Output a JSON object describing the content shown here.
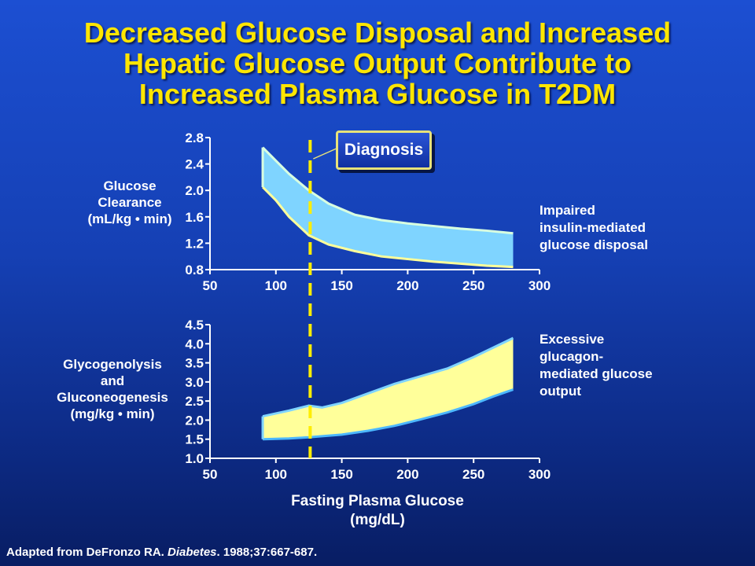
{
  "title_lines": [
    "Decreased Glucose Disposal and Increased",
    "Hepatic Glucose Output Contribute to",
    "Increased Plasma Glucose in T2DM"
  ],
  "xaxis_label_lines": [
    "Fasting Plasma Glucose",
    "(mg/dL)"
  ],
  "diagnosis_label": "Diagnosis",
  "citation": {
    "prefix": "Adapted from DeFronzo RA. ",
    "journal": "Diabetes",
    "suffix": ". 1988;37:667-687."
  },
  "colors": {
    "title": "#ffe600",
    "clearance_band": "#7fd4ff",
    "output_band": "#ffff9a",
    "diagnosis_line": "#ffee00",
    "axis": "#ffffff"
  },
  "chart_data": [
    {
      "type": "area",
      "ylabel_lines": [
        "Glucose",
        "Clearance",
        "(mL/kg • min)"
      ],
      "annotation_lines": [
        "Impaired",
        "insulin-mediated",
        "glucose disposal"
      ],
      "xlim": [
        50,
        300
      ],
      "ylim": [
        0.8,
        2.8
      ],
      "xticks": [
        "50",
        "100",
        "150",
        "200",
        "250",
        "300"
      ],
      "yticks": [
        "0.8",
        "1.2",
        "1.6",
        "2.0",
        "2.4",
        "2.8"
      ],
      "series": [
        {
          "x": [
            90,
            100,
            110,
            125,
            140,
            160,
            180,
            200,
            220,
            240,
            260,
            280
          ],
          "upper": [
            2.65,
            2.45,
            2.25,
            2.0,
            1.8,
            1.63,
            1.55,
            1.5,
            1.46,
            1.42,
            1.39,
            1.35
          ],
          "lower": [
            2.05,
            1.85,
            1.6,
            1.32,
            1.18,
            1.08,
            1.0,
            0.96,
            0.92,
            0.89,
            0.86,
            0.84
          ]
        }
      ],
      "diagnosis_x": 126
    },
    {
      "type": "area",
      "ylabel_lines": [
        "Glycogenolysis",
        "and",
        "Gluconeogenesis",
        "(mg/kg • min)"
      ],
      "annotation_lines": [
        "Excessive",
        "glucagon-",
        "mediated glucose",
        "output"
      ],
      "xlim": [
        50,
        300
      ],
      "ylim": [
        1.0,
        4.5
      ],
      "xticks": [
        "50",
        "100",
        "150",
        "200",
        "250",
        "300"
      ],
      "yticks": [
        "1.0",
        "1.5",
        "2.0",
        "2.5",
        "3.0",
        "3.5",
        "4.0",
        "4.5"
      ],
      "series": [
        {
          "x": [
            90,
            110,
            125,
            135,
            150,
            170,
            190,
            210,
            230,
            250,
            265,
            280
          ],
          "upper": [
            2.1,
            2.25,
            2.38,
            2.33,
            2.45,
            2.7,
            2.95,
            3.15,
            3.35,
            3.65,
            3.9,
            4.15
          ],
          "lower": [
            1.5,
            1.52,
            1.55,
            1.58,
            1.62,
            1.72,
            1.85,
            2.02,
            2.2,
            2.42,
            2.62,
            2.8
          ]
        }
      ],
      "diagnosis_x": 126
    }
  ]
}
